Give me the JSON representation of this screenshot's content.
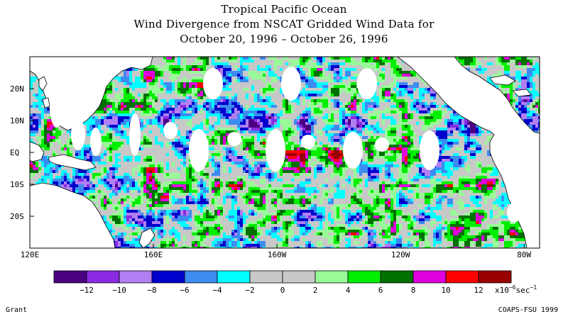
{
  "title": {
    "line1": "Tropical Pacific Ocean",
    "line2": "Wind Divergence from NSCAT Gridded Wind Data for",
    "line3": "October 20, 1996 – October 26, 1996"
  },
  "map": {
    "lon_range": [
      120,
      285
    ],
    "lat_range": [
      -30,
      30
    ],
    "lat_ticks": [
      {
        "value": 20,
        "label": "20N"
      },
      {
        "value": 10,
        "label": "10N"
      },
      {
        "value": 0,
        "label": "EQ"
      },
      {
        "value": -10,
        "label": "10S"
      },
      {
        "value": -20,
        "label": "20S"
      }
    ],
    "lon_ticks": [
      {
        "value": 120,
        "label": "120E"
      },
      {
        "value": 160,
        "label": "160E"
      },
      {
        "value": 200,
        "label": "160W"
      },
      {
        "value": 240,
        "label": "120W"
      },
      {
        "value": 280,
        "label": "80W"
      }
    ]
  },
  "colorbar": {
    "colors": [
      "#4b0082",
      "#8a2be2",
      "#b27ff2",
      "#0000cd",
      "#3c8cf0",
      "#00ffff",
      "#c8c8c8",
      "#c8c8c8",
      "#98fb98",
      "#00ee00",
      "#007000",
      "#dd00dd",
      "#ff0000",
      "#990000"
    ],
    "tick_labels": [
      "−12",
      "−10",
      "−8",
      "−6",
      "−4",
      "−2",
      "0",
      "2",
      "4",
      "6",
      "8",
      "10",
      "12"
    ],
    "unit_prefix": "x10",
    "unit_exponent": "−6",
    "unit_suffix": "sec",
    "unit_suffix_exp": "−1"
  },
  "footer": {
    "left": "Grant",
    "right": "COAPS-FSU 1999"
  }
}
